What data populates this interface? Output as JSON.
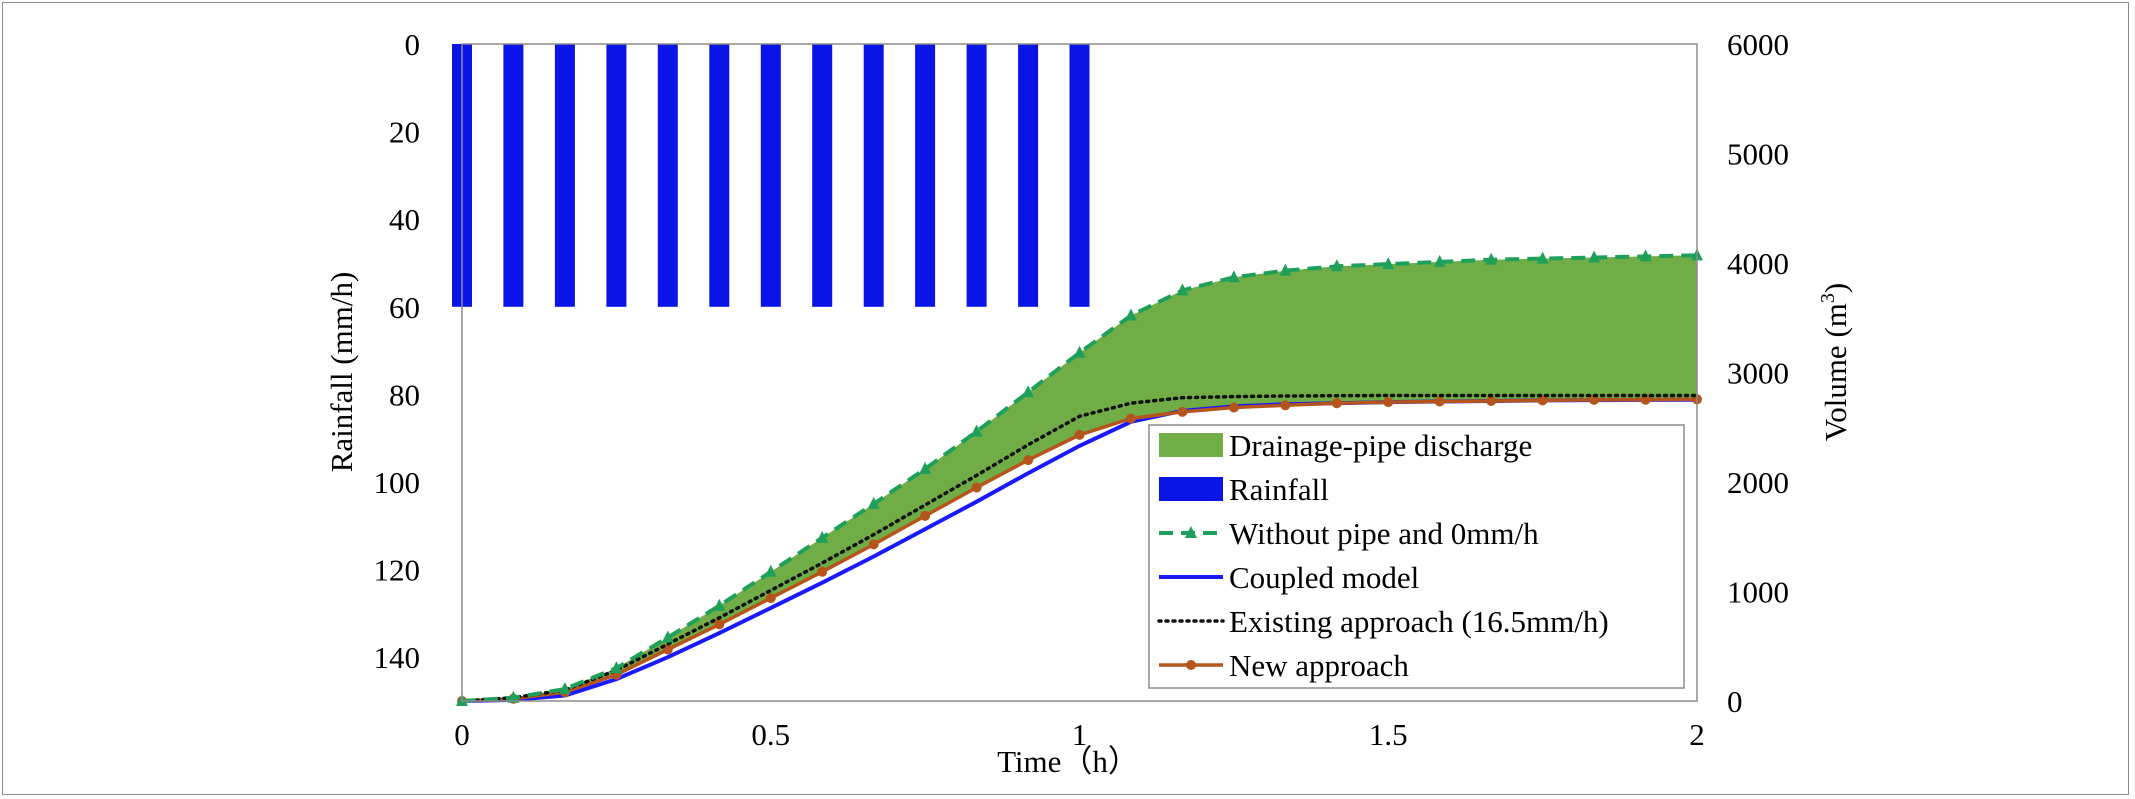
{
  "chart_data": {
    "type": "area",
    "xlabel": "Time（h）",
    "ylabel_left": "Rainfall (mm/h)",
    "ylabel_right": "Volume (m³)",
    "xlim": [
      0,
      2
    ],
    "ylim_left": [
      0,
      150
    ],
    "left_axis_inverted": true,
    "ylim_right": [
      0,
      6000
    ],
    "x_ticks": [
      "0",
      "0.5",
      "1",
      "1.5",
      "2"
    ],
    "y_left_ticks": [
      "0",
      "20",
      "40",
      "60",
      "80",
      "100",
      "120",
      "140"
    ],
    "y_right_ticks": [
      "0",
      "1000",
      "2000",
      "3000",
      "4000",
      "5000",
      "6000"
    ],
    "grid": false,
    "legend_position": "bottom-right",
    "rainfall": {
      "name": "Rainfall",
      "color": "#0a14e6",
      "axis": "left",
      "x": [
        0,
        0.0833,
        0.1667,
        0.25,
        0.3333,
        0.4167,
        0.5,
        0.5833,
        0.6667,
        0.75,
        0.8333,
        0.9167,
        1.0
      ],
      "values": [
        60,
        60,
        60,
        60,
        60,
        60,
        60,
        60,
        60,
        60,
        60,
        60,
        60
      ]
    },
    "drainage_area": {
      "name": "Drainage-pipe discharge",
      "color": "#70ad47",
      "description_between": [
        "Without pipe and 0mm/h",
        "New approach"
      ]
    },
    "series": [
      {
        "name": "Without pipe and 0mm/h",
        "color": "#1fa05a",
        "style": "dash-triangle",
        "x": [
          0,
          0.0833,
          0.1667,
          0.25,
          0.3333,
          0.4167,
          0.5,
          0.5833,
          0.6667,
          0.75,
          0.8333,
          0.9167,
          1.0,
          1.0833,
          1.1667,
          1.25,
          1.3333,
          1.4167,
          1.5,
          1.5833,
          1.6667,
          1.75,
          1.8333,
          1.9167,
          2.0
        ],
        "values": [
          0,
          30,
          110,
          300,
          580,
          870,
          1180,
          1490,
          1800,
          2120,
          2460,
          2820,
          3180,
          3520,
          3750,
          3870,
          3930,
          3970,
          3990,
          4010,
          4030,
          4040,
          4050,
          4060,
          4070
        ]
      },
      {
        "name": "Coupled model",
        "color": "#1a1aff",
        "style": "solid",
        "x": [
          0,
          0.0833,
          0.1667,
          0.25,
          0.3333,
          0.4167,
          0.5,
          0.5833,
          0.6667,
          0.75,
          0.8333,
          0.9167,
          1.0,
          1.0833,
          1.1667,
          1.25,
          1.3333,
          1.4167,
          1.5,
          1.5833,
          1.6667,
          1.75,
          1.8333,
          1.9167,
          2.0
        ],
        "values": [
          0,
          10,
          50,
          200,
          400,
          620,
          850,
          1080,
          1320,
          1570,
          1820,
          2080,
          2330,
          2550,
          2650,
          2690,
          2710,
          2720,
          2730,
          2735,
          2740,
          2745,
          2748,
          2750,
          2752
        ]
      },
      {
        "name": "Existing approach (16.5mm/h)",
        "color": "#111111",
        "style": "dotted",
        "x": [
          0,
          0.0833,
          0.1667,
          0.25,
          0.3333,
          0.4167,
          0.5,
          0.5833,
          0.6667,
          0.75,
          0.8333,
          0.9167,
          1.0,
          1.0833,
          1.1667,
          1.25,
          1.3333,
          1.4167,
          1.5,
          1.5833,
          1.6667,
          1.75,
          1.8333,
          1.9167,
          2.0
        ],
        "values": [
          0,
          30,
          100,
          280,
          520,
          760,
          1010,
          1260,
          1520,
          1790,
          2060,
          2340,
          2600,
          2720,
          2770,
          2780,
          2785,
          2788,
          2790,
          2790,
          2790,
          2790,
          2790,
          2790,
          2790
        ]
      },
      {
        "name": "New approach",
        "color": "#b5541b",
        "style": "solid-circle",
        "x": [
          0,
          0.0833,
          0.1667,
          0.25,
          0.3333,
          0.4167,
          0.5,
          0.5833,
          0.6667,
          0.75,
          0.8333,
          0.9167,
          1.0,
          1.0833,
          1.1667,
          1.25,
          1.3333,
          1.4167,
          1.5,
          1.5833,
          1.6667,
          1.75,
          1.8333,
          1.9167,
          2.0
        ],
        "values": [
          0,
          20,
          80,
          240,
          470,
          700,
          940,
          1180,
          1430,
          1690,
          1950,
          2200,
          2430,
          2580,
          2640,
          2680,
          2700,
          2720,
          2730,
          2735,
          2740,
          2745,
          2750,
          2752,
          2755
        ]
      }
    ],
    "legend": [
      "Drainage-pipe discharge",
      "Rainfall",
      "Without pipe and 0mm/h",
      "Coupled model",
      "Existing approach (16.5mm/h)",
      "New approach"
    ]
  }
}
